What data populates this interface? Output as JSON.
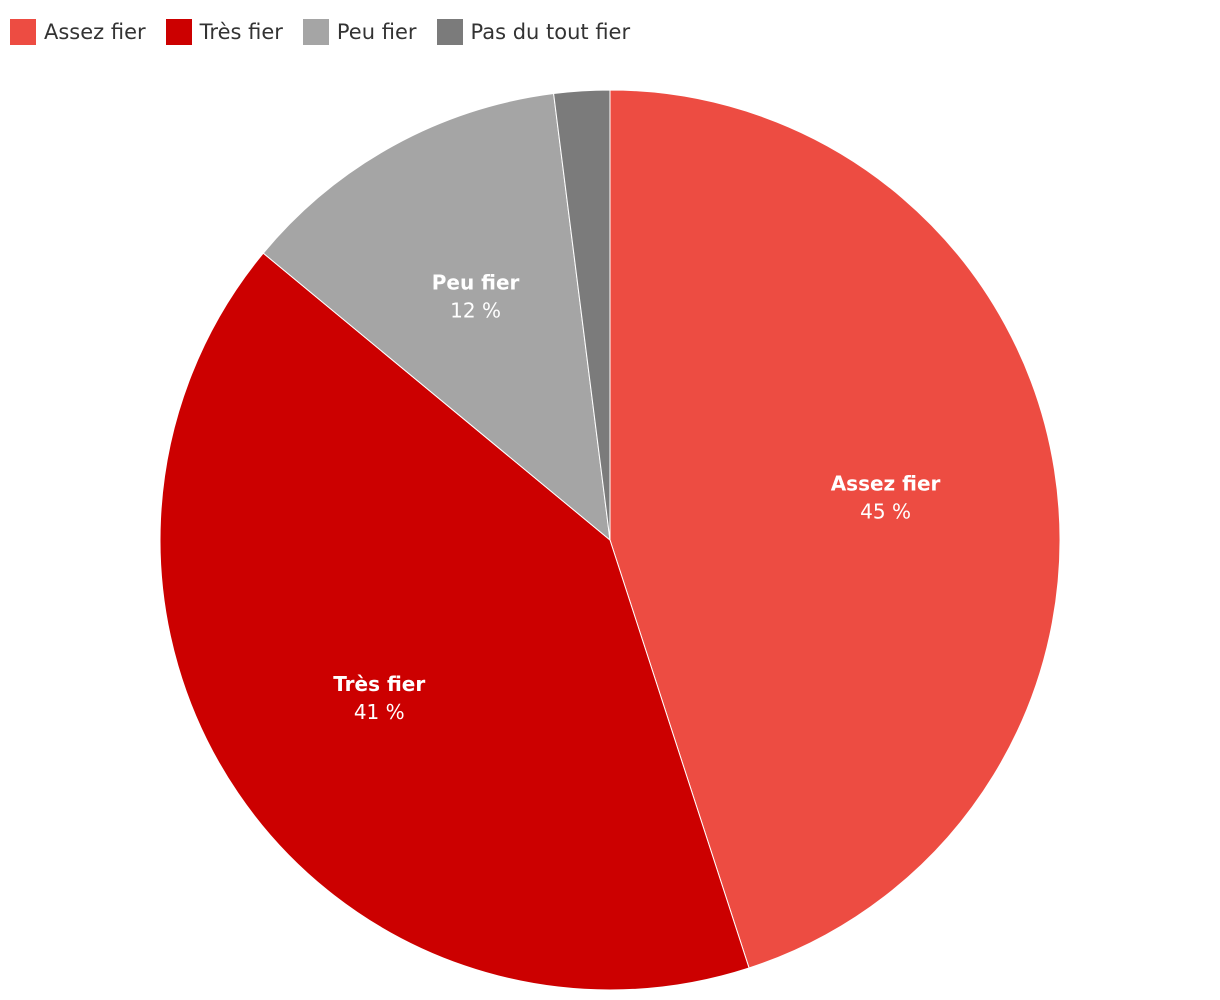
{
  "chart_data": {
    "type": "pie",
    "title": "",
    "legend_position": "top-left",
    "slices": [
      {
        "label": "Assez fier",
        "value": 45,
        "value_label": "45 %",
        "color": "#ED4C42"
      },
      {
        "label": "Très fier",
        "value": 41,
        "value_label": "41 %",
        "color": "#CC0000"
      },
      {
        "label": "Peu fier",
        "value": 12,
        "value_label": "12 %",
        "color": "#A5A5A5"
      },
      {
        "label": "Pas du tout fier",
        "value": 2,
        "value_label": "",
        "color": "#7B7B7B"
      }
    ]
  }
}
